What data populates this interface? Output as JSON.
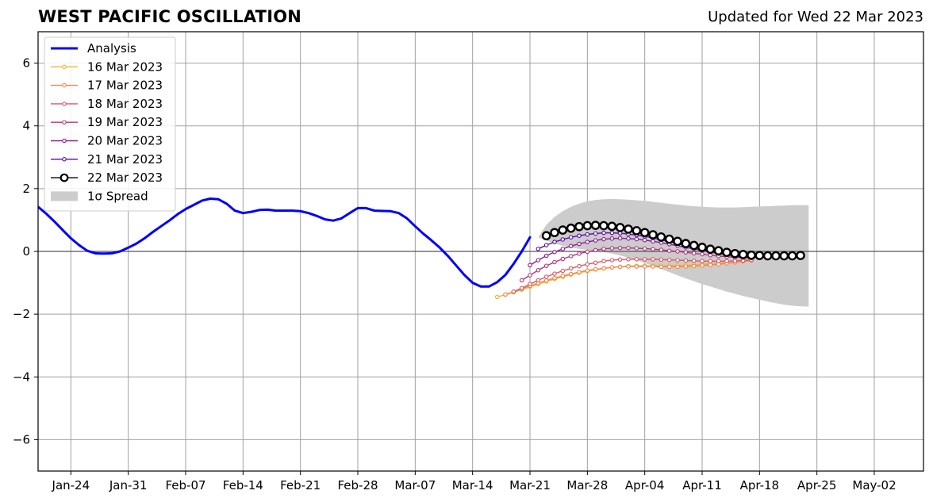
{
  "header": {
    "title": "WEST PACIFIC OSCILLATION",
    "updated": "Updated for Wed 22 Mar 2023"
  },
  "chart_data": {
    "type": "line",
    "title": "WEST PACIFIC OSCILLATION",
    "subtitle": "Updated for Wed 22 Mar 2023",
    "xlabel": "",
    "ylabel": "",
    "x_axis": {
      "type": "date",
      "range": [
        "2023-01-20",
        "2023-05-08"
      ],
      "ticks": [
        {
          "date": "2023-01-24",
          "label": "Jan-24"
        },
        {
          "date": "2023-01-31",
          "label": "Jan-31"
        },
        {
          "date": "2023-02-07",
          "label": "Feb-07"
        },
        {
          "date": "2023-02-14",
          "label": "Feb-14"
        },
        {
          "date": "2023-02-21",
          "label": "Feb-21"
        },
        {
          "date": "2023-02-28",
          "label": "Feb-28"
        },
        {
          "date": "2023-03-07",
          "label": "Mar-07"
        },
        {
          "date": "2023-03-14",
          "label": "Mar-14"
        },
        {
          "date": "2023-03-21",
          "label": "Mar-21"
        },
        {
          "date": "2023-03-28",
          "label": "Mar-28"
        },
        {
          "date": "2023-04-04",
          "label": "Apr-04"
        },
        {
          "date": "2023-04-11",
          "label": "Apr-11"
        },
        {
          "date": "2023-04-18",
          "label": "Apr-18"
        },
        {
          "date": "2023-04-25",
          "label": "Apr-25"
        },
        {
          "date": "2023-05-02",
          "label": "May-02"
        }
      ]
    },
    "y_axis": {
      "range": [
        -7,
        7
      ],
      "ticks": [
        {
          "value": 6,
          "label": "6"
        },
        {
          "value": 4,
          "label": "4"
        },
        {
          "value": 2,
          "label": "2"
        },
        {
          "value": 0,
          "label": "0"
        },
        {
          "value": -2,
          "label": "−2"
        },
        {
          "value": -4,
          "label": "−4"
        },
        {
          "value": -6,
          "label": "−6"
        }
      ]
    },
    "grid": true,
    "zero_line": true,
    "legend": {
      "position": "top-left",
      "entries": [
        {
          "label": "Analysis",
          "color": "#0000ff",
          "style": "line"
        },
        {
          "label": "16 Mar 2023",
          "color": "#f7b42c",
          "style": "marker-line"
        },
        {
          "label": "17 Mar 2023",
          "color": "#f0854d",
          "style": "marker-line"
        },
        {
          "label": "18 Mar 2023",
          "color": "#d75968",
          "style": "marker-line"
        },
        {
          "label": "19 Mar 2023",
          "color": "#b2357e",
          "style": "marker-line"
        },
        {
          "label": "20 Mar 2023",
          "color": "#8a1d95",
          "style": "marker-line"
        },
        {
          "label": "21 Mar 2023",
          "color": "#5c0aa3",
          "style": "marker-line"
        },
        {
          "label": "22 Mar 2023",
          "color": "#000000",
          "style": "open-circle"
        },
        {
          "label": "1σ Spread",
          "color": "#cccccc",
          "style": "patch"
        }
      ]
    },
    "analysis": {
      "name": "Analysis",
      "color": "#0000ff",
      "start": "2023-01-20",
      "values": [
        1.42,
        1.2,
        0.95,
        0.68,
        0.42,
        0.2,
        0.02,
        -0.06,
        -0.07,
        -0.06,
        0.0,
        0.12,
        0.25,
        0.42,
        0.62,
        0.8,
        0.98,
        1.18,
        1.35,
        1.48,
        1.62,
        1.68,
        1.66,
        1.52,
        1.3,
        1.22,
        1.26,
        1.32,
        1.33,
        1.3,
        1.3,
        1.3,
        1.28,
        1.22,
        1.13,
        1.02,
        0.98,
        1.05,
        1.22,
        1.38,
        1.38,
        1.3,
        1.29,
        1.28,
        1.22,
        1.05,
        0.8,
        0.56,
        0.35,
        0.12,
        -0.15,
        -0.45,
        -0.75,
        -1.0,
        -1.12,
        -1.12,
        -0.98,
        -0.75,
        -0.4,
        0.0,
        0.45
      ]
    },
    "forecasts": [
      {
        "name": "16 Mar 2023",
        "color": "#f7b42c",
        "start": "2023-03-17",
        "values": [
          -1.45,
          -1.38,
          -1.3,
          -1.22,
          -1.13,
          -1.04,
          -0.96,
          -0.88,
          -0.81,
          -0.74,
          -0.68,
          -0.63,
          -0.58,
          -0.54,
          -0.51,
          -0.49,
          -0.47,
          -0.46,
          -0.46,
          -0.46,
          -0.46,
          -0.46,
          -0.45,
          -0.44,
          -0.43,
          -0.41,
          -0.39,
          -0.36,
          -0.33,
          -0.3,
          -0.27,
          -0.24
        ]
      },
      {
        "name": "17 Mar 2023",
        "color": "#f0854d",
        "start": "2023-03-18",
        "values": [
          -1.37,
          -1.29,
          -1.19,
          -1.1,
          -1.01,
          -0.93,
          -0.85,
          -0.78,
          -0.72,
          -0.66,
          -0.61,
          -0.57,
          -0.54,
          -0.51,
          -0.49,
          -0.48,
          -0.48,
          -0.48,
          -0.48,
          -0.49,
          -0.49,
          -0.49,
          -0.48,
          -0.47,
          -0.45,
          -0.43,
          -0.41,
          -0.38,
          -0.35,
          -0.32,
          -0.29
        ]
      },
      {
        "name": "18 Mar 2023",
        "color": "#d75968",
        "start": "2023-03-19",
        "values": [
          -1.28,
          -1.17,
          -1.04,
          -0.92,
          -0.81,
          -0.71,
          -0.62,
          -0.54,
          -0.47,
          -0.41,
          -0.36,
          -0.31,
          -0.28,
          -0.26,
          -0.25,
          -0.25,
          -0.25,
          -0.25,
          -0.26,
          -0.27,
          -0.28,
          -0.29,
          -0.3,
          -0.31,
          -0.31,
          -0.31,
          -0.31,
          -0.3,
          -0.29,
          -0.27
        ]
      },
      {
        "name": "19 Mar 2023",
        "color": "#b2357e",
        "start": "2023-03-20",
        "values": [
          -0.92,
          -0.76,
          -0.6,
          -0.46,
          -0.34,
          -0.24,
          -0.15,
          -0.07,
          -0.01,
          0.04,
          0.08,
          0.1,
          0.11,
          0.11,
          0.1,
          0.09,
          0.07,
          0.05,
          0.02,
          0.0,
          -0.03,
          -0.06,
          -0.09,
          -0.12,
          -0.15,
          -0.17,
          -0.19,
          -0.2,
          -0.21
        ]
      },
      {
        "name": "20 Mar 2023",
        "color": "#8a1d95",
        "start": "2023-03-21",
        "values": [
          -0.44,
          -0.28,
          -0.14,
          -0.02,
          0.08,
          0.17,
          0.24,
          0.3,
          0.35,
          0.39,
          0.41,
          0.42,
          0.41,
          0.39,
          0.36,
          0.32,
          0.28,
          0.23,
          0.18,
          0.13,
          0.08,
          0.03,
          -0.02,
          -0.07,
          -0.11,
          -0.15,
          -0.18,
          -0.2
        ]
      },
      {
        "name": "21 Mar 2023",
        "color": "#5c0aa3",
        "start": "2023-03-22",
        "values": [
          0.08,
          0.2,
          0.3,
          0.38,
          0.45,
          0.5,
          0.54,
          0.57,
          0.59,
          0.59,
          0.58,
          0.55,
          0.52,
          0.48,
          0.43,
          0.37,
          0.31,
          0.25,
          0.19,
          0.13,
          0.07,
          0.01,
          -0.04,
          -0.09,
          -0.13,
          -0.17,
          -0.2
        ]
      }
    ],
    "latest_forecast": {
      "name": "22 Mar 2023",
      "color": "#000000",
      "start": "2023-03-23",
      "values": [
        0.5,
        0.6,
        0.68,
        0.74,
        0.79,
        0.82,
        0.83,
        0.82,
        0.8,
        0.76,
        0.71,
        0.66,
        0.6,
        0.53,
        0.46,
        0.39,
        0.32,
        0.25,
        0.19,
        0.13,
        0.07,
        0.02,
        -0.03,
        -0.07,
        -0.1,
        -0.12,
        -0.13,
        -0.14,
        -0.14,
        -0.14,
        -0.14,
        -0.13
      ]
    },
    "spread": {
      "name": "1σ Spread",
      "color": "#cccccc",
      "start": "2023-03-22",
      "upper": [
        0.45,
        0.85,
        1.1,
        1.28,
        1.42,
        1.52,
        1.6,
        1.64,
        1.66,
        1.67,
        1.66,
        1.65,
        1.63,
        1.61,
        1.58,
        1.55,
        1.52,
        1.49,
        1.46,
        1.44,
        1.42,
        1.41,
        1.4,
        1.4,
        1.4,
        1.41,
        1.42,
        1.43,
        1.44,
        1.45,
        1.46,
        1.47,
        1.47,
        1.47
      ],
      "lower": [
        0.45,
        0.35,
        0.25,
        0.18,
        0.12,
        0.08,
        0.05,
        0.02,
        -0.02,
        -0.07,
        -0.13,
        -0.2,
        -0.28,
        -0.37,
        -0.46,
        -0.56,
        -0.66,
        -0.76,
        -0.86,
        -0.95,
        -1.04,
        -1.12,
        -1.2,
        -1.28,
        -1.35,
        -1.42,
        -1.48,
        -1.54,
        -1.6,
        -1.65,
        -1.7,
        -1.73,
        -1.75,
        -1.76
      ]
    }
  }
}
